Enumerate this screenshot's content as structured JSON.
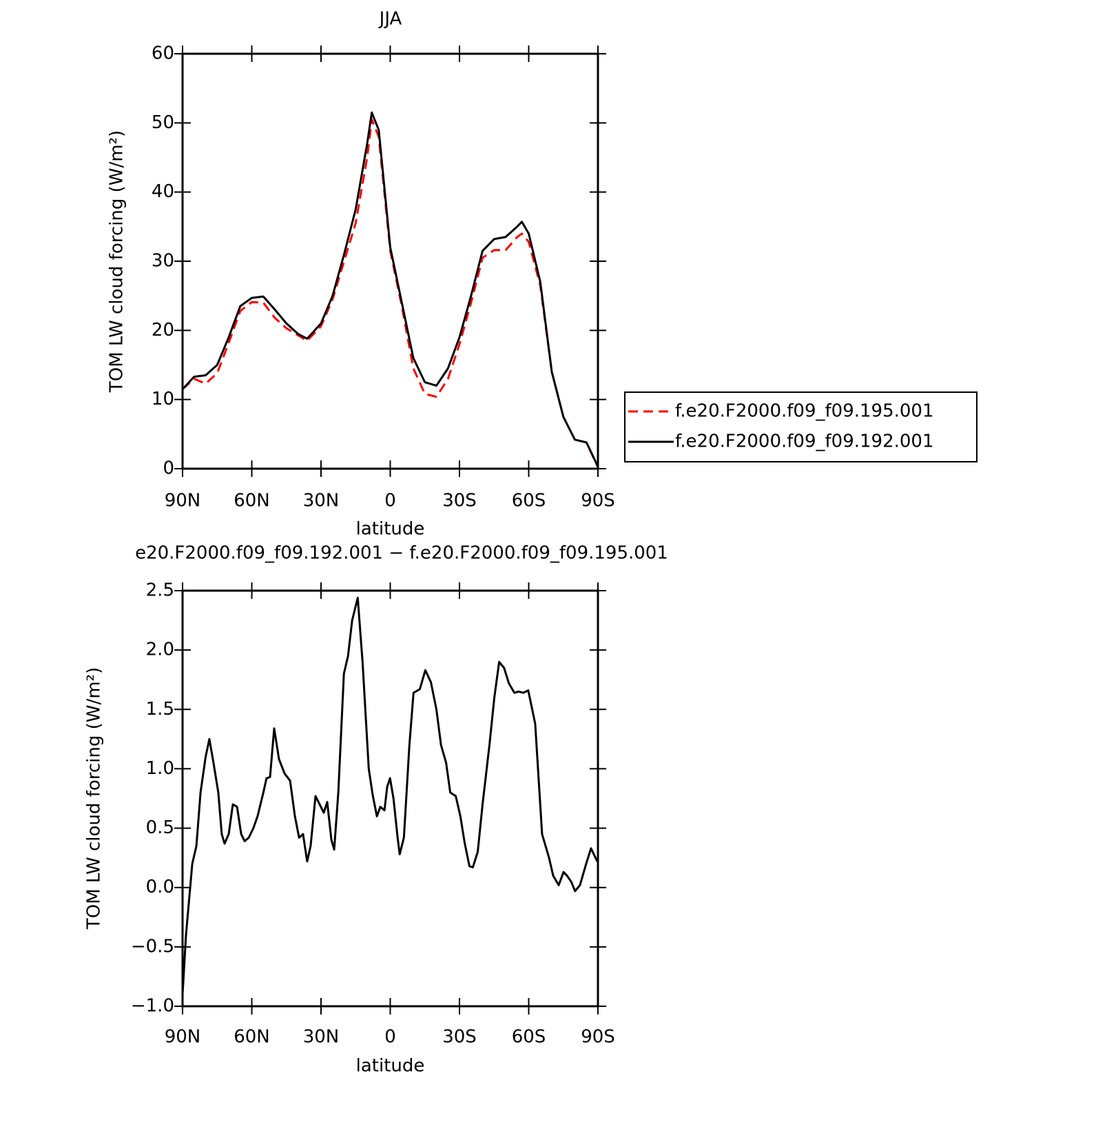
{
  "chart_data": [
    {
      "type": "line",
      "title": "JJA",
      "xlabel": "latitude",
      "ylabel": "TOM LW cloud forcing (W/m²)",
      "x": [
        90,
        85,
        80,
        75,
        70,
        65,
        60,
        55,
        50,
        45,
        40,
        36,
        30,
        25,
        20,
        15,
        10,
        8,
        5,
        0,
        -5,
        -10,
        -15,
        -20,
        -25,
        -30,
        -35,
        -40,
        -45,
        -50,
        -55,
        -57,
        -60,
        -65,
        -70,
        -75,
        -80,
        -85,
        -90
      ],
      "series": [
        {
          "name": "f.e20.F2000.f09_f09.195.001",
          "color": "#ff0000",
          "linestyle": "dashed",
          "values": [
            11.5,
            13.0,
            12.3,
            13.8,
            18.2,
            22.8,
            24.1,
            24.0,
            21.8,
            20.3,
            19.3,
            18.5,
            20.6,
            24.5,
            30,
            35.5,
            45,
            50.5,
            48,
            31.5,
            23.5,
            14.5,
            10.8,
            10.4,
            13,
            18,
            24,
            30.5,
            31.6,
            31.6,
            33.5,
            34,
            32.8,
            26.5,
            14,
            7.5,
            4.2,
            3.8,
            0.2
          ]
        },
        {
          "name": "f.e20.F2000.f09_f09.192.001",
          "color": "#000000",
          "linestyle": "solid",
          "values": [
            11.5,
            13.3,
            13.5,
            15,
            19,
            23.5,
            24.7,
            24.9,
            23,
            21,
            19.5,
            18.8,
            21,
            25,
            31,
            37.5,
            47,
            51.5,
            49,
            32,
            24,
            16,
            12.5,
            12,
            14.5,
            19,
            25,
            31.5,
            33.2,
            33.5,
            35,
            35.7,
            34,
            27,
            14,
            7.5,
            4.2,
            3.8,
            0.3
          ]
        }
      ],
      "xlim": [
        90,
        -90
      ],
      "xticks": [
        {
          "value": 90,
          "label": "90N"
        },
        {
          "value": 60,
          "label": "60N"
        },
        {
          "value": 30,
          "label": "30N"
        },
        0,
        {
          "value": -30,
          "label": "30S"
        },
        {
          "value": -60,
          "label": "60S"
        },
        {
          "value": -90,
          "label": "90S"
        }
      ],
      "ylim": [
        0,
        60
      ],
      "yticks": [
        0,
        10,
        20,
        30,
        40,
        50,
        60
      ],
      "legend": "right"
    },
    {
      "type": "line",
      "title": "e20.F2000.f09_f09.192.001 − f.e20.F2000.f09_f09.195.001",
      "xlabel": "latitude",
      "ylabel": "TOM LW cloud forcing (W/m²)",
      "x": [
        90,
        88.5,
        85.8,
        84,
        82.2,
        80,
        78.4,
        76.6,
        74.5,
        73,
        71.8,
        70,
        68.2,
        66.4,
        64.6,
        63.1,
        61.3,
        59.3,
        57.5,
        55,
        53.6,
        52.1,
        50.3,
        48.2,
        45.8,
        43.4,
        41.3,
        39.5,
        37.8,
        36,
        34.5,
        32.4,
        30.6,
        28.8,
        27.3,
        25.5,
        24.3,
        22.5,
        20.1,
        18.3,
        16.5,
        14.1,
        12,
        9.3,
        7.6,
        5.8,
        4.3,
        2.5,
        1.3,
        0.1,
        -1.4,
        -3.2,
        -4.1,
        -5.9,
        -8.3,
        -10.1,
        -12.8,
        -15.2,
        -17.6,
        -20,
        -22,
        -24.2,
        -26,
        -28.4,
        -30.4,
        -32.2,
        -34.3,
        -35.8,
        -37.9,
        -40,
        -43,
        -45.1,
        -47.2,
        -49.3,
        -51.4,
        -53.8,
        -55.6,
        -57.7,
        -59.8,
        -62.8,
        -65.8,
        -68.8,
        -70.6,
        -73,
        -75.1,
        -76.6,
        -78.4,
        -80.1,
        -82.2,
        -84.9,
        -87,
        -89.7
      ],
      "color": "#000000",
      "values": [
        -0.9,
        -0.4,
        0.2,
        0.35,
        0.8,
        1.1,
        1.25,
        1.05,
        0.8,
        0.45,
        0.37,
        0.45,
        0.7,
        0.68,
        0.45,
        0.39,
        0.42,
        0.5,
        0.6,
        0.8,
        0.92,
        0.93,
        1.34,
        1.08,
        0.96,
        0.9,
        0.6,
        0.42,
        0.45,
        0.22,
        0.35,
        0.77,
        0.7,
        0.63,
        0.72,
        0.4,
        0.32,
        0.8,
        1.8,
        1.95,
        2.25,
        2.44,
        1.9,
        1.0,
        0.78,
        0.6,
        0.68,
        0.65,
        0.85,
        0.92,
        0.75,
        0.42,
        0.28,
        0.42,
        1.2,
        1.64,
        1.67,
        1.83,
        1.73,
        1.5,
        1.2,
        1.05,
        0.8,
        0.77,
        0.6,
        0.38,
        0.18,
        0.17,
        0.3,
        0.7,
        1.2,
        1.6,
        1.9,
        1.85,
        1.72,
        1.64,
        1.65,
        1.64,
        1.66,
        1.38,
        0.45,
        0.25,
        0.1,
        0.02,
        0.13,
        0.1,
        0.05,
        -0.03,
        0.02,
        0.2,
        0.33,
        0.22
      ],
      "xlim": [
        90,
        -90
      ],
      "xticks": [
        {
          "value": 90,
          "label": "90N"
        },
        {
          "value": 60,
          "label": "60N"
        },
        {
          "value": 30,
          "label": "30N"
        },
        0,
        {
          "value": -30,
          "label": "30S"
        },
        {
          "value": -60,
          "label": "60S"
        },
        {
          "value": -90,
          "label": "90S"
        }
      ],
      "ylim": [
        -1,
        2.5
      ],
      "yticks": [
        {
          "value": -1,
          "label": "−1.0"
        },
        {
          "value": -0.5,
          "label": "−0.5"
        },
        {
          "value": 0,
          "label": "0.0"
        },
        0.5,
        {
          "value": 1,
          "label": "1.0"
        },
        1.5,
        {
          "value": 2,
          "label": "2.0"
        },
        2.5
      ]
    }
  ]
}
